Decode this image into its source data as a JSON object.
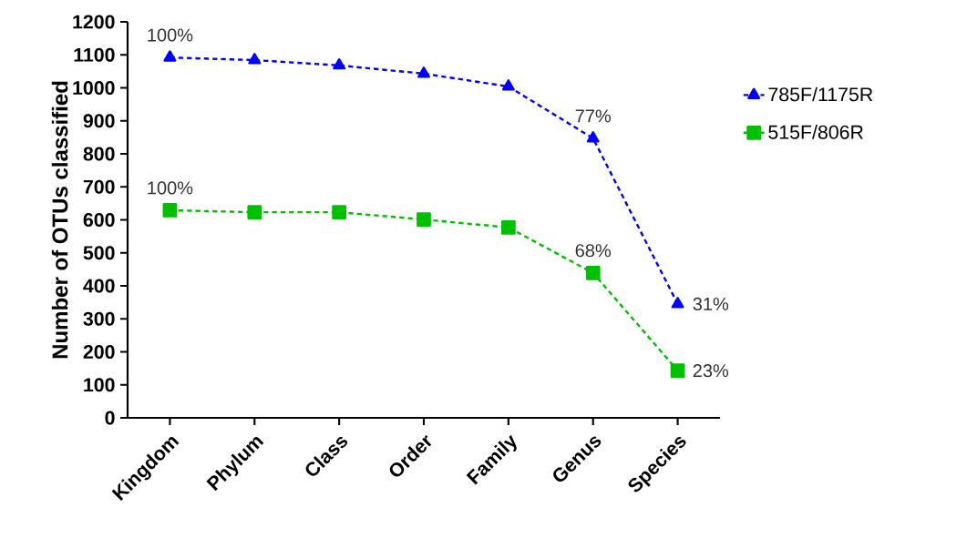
{
  "chart_data": {
    "type": "line",
    "ylabel": "Number of OTUs classified",
    "categories": [
      "Kingdom",
      "Phylum",
      "Class",
      "Order",
      "Family",
      "Genus",
      "Species"
    ],
    "series": [
      {
        "name": "785F/1175R",
        "color": "#0000ff",
        "marker": "triangle",
        "values": [
          1092,
          1084,
          1068,
          1043,
          1004,
          847,
          345
        ]
      },
      {
        "name": "515F/806R",
        "color": "#00c000",
        "marker": "square",
        "values": [
          629,
          623,
          623,
          601,
          577,
          439,
          143
        ]
      }
    ],
    "ylim": [
      0,
      1200
    ],
    "yticks": [
      0,
      100,
      200,
      300,
      400,
      500,
      600,
      700,
      800,
      900,
      1000,
      1100,
      1200
    ],
    "line_style": "dashed",
    "legend": "right",
    "grid": false,
    "annotations": [
      {
        "text": "100%",
        "x": "Kingdom",
        "y": 1092
      },
      {
        "text": "77%",
        "x": "Genus",
        "y": 847
      },
      {
        "text": "31%",
        "x": "Species",
        "y": 345
      },
      {
        "text": "100%",
        "x": "Kingdom",
        "y": 629
      },
      {
        "text": "68%",
        "x": "Genus",
        "y": 439
      },
      {
        "text": "23%",
        "x": "Species",
        "y": 143
      }
    ]
  }
}
